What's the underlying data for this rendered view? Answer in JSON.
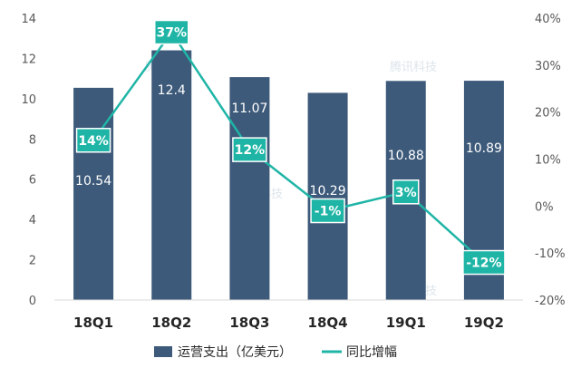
{
  "chart_data": {
    "type": "bar",
    "categories": [
      "18Q1",
      "18Q2",
      "18Q3",
      "18Q4",
      "19Q1",
      "19Q2"
    ],
    "series": [
      {
        "name": "运营支出（亿美元）",
        "type": "bar",
        "axis": "left",
        "values": [
          10.54,
          12.4,
          11.07,
          10.29,
          10.88,
          10.89
        ],
        "labels": [
          "10.54",
          "12.4",
          "11.07",
          "10.29",
          "10.88",
          "10.89"
        ],
        "color": "#3d5a7a"
      },
      {
        "name": "同比增幅",
        "type": "line",
        "axis": "right",
        "values": [
          14,
          37,
          12,
          -1,
          3,
          -12
        ],
        "labels": [
          "14%",
          "37%",
          "12%",
          "-1%",
          "3%",
          "-12%"
        ],
        "color": "#1fb5a6"
      }
    ],
    "y_left": {
      "min": 0,
      "max": 14,
      "ticks": [
        0,
        2,
        4,
        6,
        8,
        10,
        12,
        14
      ]
    },
    "y_right": {
      "min": -20,
      "max": 40,
      "ticks": [
        -20,
        -10,
        0,
        10,
        20,
        30,
        40
      ],
      "tick_labels": [
        "-20%",
        "-10%",
        "0%",
        "10%",
        "20%",
        "30%",
        "40%"
      ]
    },
    "grid": false,
    "legend": "bottom",
    "watermark": "腾讯科技"
  }
}
